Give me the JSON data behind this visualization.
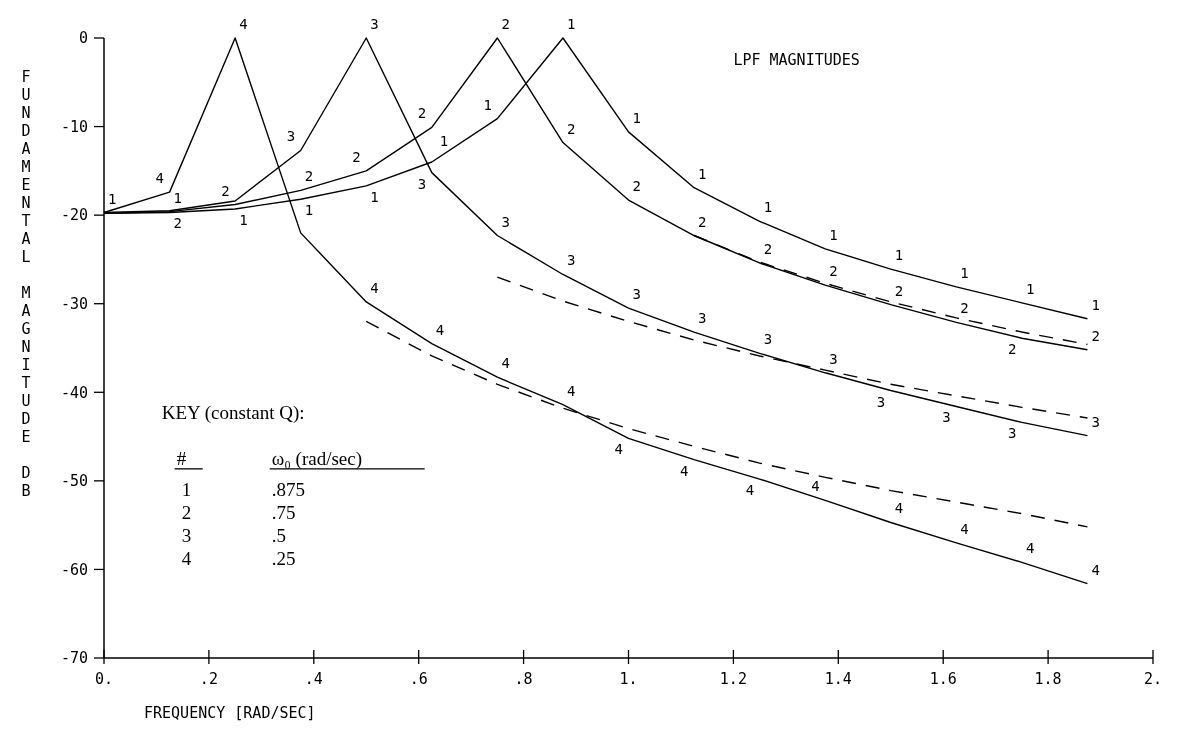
{
  "chart_data": {
    "type": "line",
    "title": "LPF MAGNITUDES",
    "xlabel": "FREQUENCY [RAD/SEC]",
    "ylabel": "FUNDAMENTAL MAGNITUDE DB",
    "x": [
      0,
      0.125,
      0.25,
      0.375,
      0.5,
      0.625,
      0.75,
      0.875,
      1,
      1.125,
      1.25,
      1.375,
      1.5,
      1.625,
      1.75,
      1.875
    ],
    "xlim": [
      0,
      2
    ],
    "ylim": [
      -70,
      0
    ],
    "xticks": [
      {
        "value": 0,
        "label": "0."
      },
      {
        "value": 0.2,
        "label": ".2"
      },
      {
        "value": 0.4,
        "label": ".4"
      },
      {
        "value": 0.6,
        "label": ".6"
      },
      {
        "value": 0.8,
        "label": ".8"
      },
      {
        "value": 1,
        "label": "1."
      },
      1.2,
      1.4,
      1.6,
      1.8,
      {
        "value": 2,
        "label": "2."
      }
    ],
    "yticks": [
      0,
      -10,
      -20,
      -30,
      -40,
      -50,
      -60,
      -70
    ],
    "grid": false,
    "legend": "bottom left",
    "line_style": "solid",
    "series": [
      {
        "name": "1",
        "color": "#000000",
        "values": [
          -19.8,
          -19.7,
          -19.3,
          -18.2,
          -16.7,
          -14.0,
          -9.1,
          0,
          -10.6,
          -16.9,
          -20.7,
          -23.8,
          -26.1,
          -28.1,
          -29.9,
          -31.7
        ]
      },
      {
        "name": "2",
        "color": "#000000",
        "values": [
          -19.8,
          -19.6,
          -18.8,
          -17.2,
          -15.0,
          -10.1,
          0,
          -11.8,
          -18.3,
          -22.3,
          -25.4,
          -27.9,
          -30.1,
          -32.1,
          -33.9,
          -35.2
        ]
      },
      {
        "name": "3",
        "color": "#000000",
        "values": [
          -19.7,
          -19.5,
          -18.4,
          -12.7,
          0,
          -15.2,
          -22.3,
          -26.7,
          -30.5,
          -33.2,
          -35.6,
          -37.8,
          -39.8,
          -41.6,
          -43.4,
          -44.9
        ]
      },
      {
        "name": "4",
        "color": "#000000",
        "values": [
          -19.7,
          -17.4,
          0,
          -22.0,
          -29.8,
          -34.5,
          -38.3,
          -41.4,
          -45.2,
          -47.6,
          -49.8,
          -52.2,
          -54.7,
          -57.0,
          -59.2,
          -61.6
        ]
      },
      {
        "type": "line",
        "line_style": "dashed",
        "color": "#000000",
        "x": [
          1.125,
          1.25,
          1.375,
          1.5,
          1.625,
          1.75,
          1.875
        ],
        "values": [
          -22.3,
          -25.3,
          -27.7,
          -29.8,
          -31.6,
          -33.2,
          -34.6
        ]
      },
      {
        "type": "line",
        "line_style": "dashed",
        "color": "#000000",
        "x": [
          0.75,
          0.875,
          1,
          1.125,
          1.25,
          1.375,
          1.5,
          1.625,
          1.75,
          1.875
        ],
        "values": [
          -27.0,
          -29.7,
          -32.0,
          -34.1,
          -35.9,
          -37.5,
          -39.1,
          -40.4,
          -41.7,
          -42.9
        ]
      },
      {
        "type": "line",
        "line_style": "dashed",
        "color": "#000000",
        "x": [
          0.5,
          0.625,
          0.75,
          0.875,
          1,
          1.125,
          1.25,
          1.375,
          1.5,
          1.625,
          1.75,
          1.875
        ],
        "values": [
          -32.0,
          -35.9,
          -39.1,
          -41.8,
          -44.1,
          -46.1,
          -48.0,
          -49.6,
          -51.1,
          -52.4,
          -53.7,
          -55.2
        ]
      }
    ],
    "annotations": [
      "KEY (constant Q):",
      "#",
      "ω₀ (rad/sec)",
      ".875",
      ".75",
      ".5",
      ".25"
    ]
  }
}
